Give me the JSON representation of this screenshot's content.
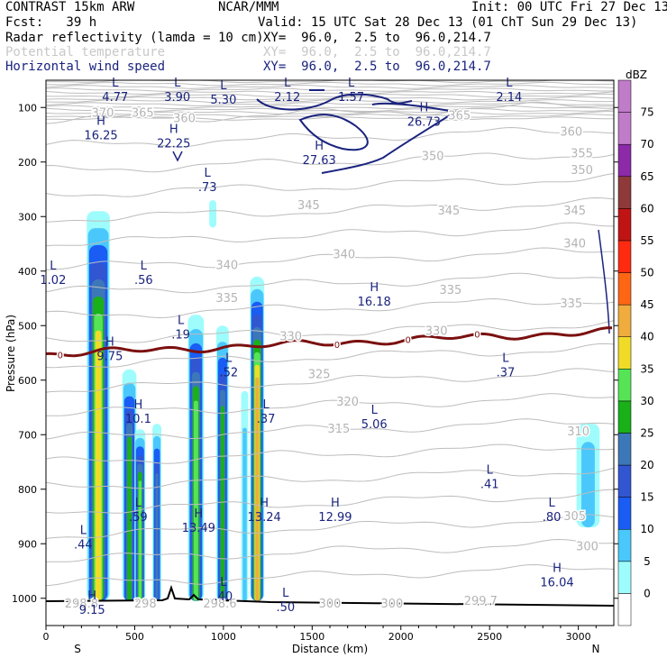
{
  "header": {
    "model": "CONTRAST 15km ARW",
    "center": "NCAR/MMM",
    "init": "Init: 00 UTC Fri 27 Dec 13",
    "fcst": "Fcst:   39 h",
    "valid": "Valid: 15 UTC Sat 28 Dec 13 (01 ChT Sun 29 Dec 13)",
    "field1_name": "Radar reflectivity (lamda = 10 cm)",
    "field1_xy": "XY=  96.0,  2.5 to  96.0,214.7",
    "field2_name": "Potential temperature",
    "field2_xy": "XY=  96.0,  2.5 to  96.0,214.7",
    "field3_name": "Horizontal wind speed",
    "field3_xy": "XY=  96.0,  2.5 to  96.0,214.7"
  },
  "colors": {
    "axis": "#000000",
    "theta": "#b4b4b4",
    "wind": "#1a237e",
    "freezing": "#7b1010",
    "terrain": "#000000"
  },
  "chart_data": {
    "type": "cross-section",
    "title": "Radar reflectivity / Potential temperature / Horizontal wind speed",
    "xlabel": "Distance (km)",
    "ylabel": "Pressure (hPa)",
    "xlim": [
      0,
      3200
    ],
    "ylim": [
      1050,
      50
    ],
    "x_ticks": [
      0,
      500,
      1000,
      1500,
      2000,
      2500,
      3000
    ],
    "y_ticks": [
      100,
      200,
      300,
      400,
      500,
      600,
      700,
      800,
      900,
      1000
    ],
    "x_end_labels": {
      "left": "S",
      "right": "N"
    },
    "colorbar": {
      "unit": "dBZ",
      "levels": [
        0,
        5,
        10,
        15,
        20,
        25,
        30,
        35,
        40,
        45,
        50,
        55,
        60,
        65,
        70,
        75
      ],
      "colors": [
        "#ffffff",
        "#9ffcfc",
        "#4ac8fc",
        "#1a5cf4",
        "#3256d2",
        "#3c78b8",
        "#19b019",
        "#56e456",
        "#f0dc28",
        "#f0ac3c",
        "#ff6614",
        "#ff2a10",
        "#c01414",
        "#8e3a3a",
        "#8c2aa8",
        "#c07cc8"
      ]
    },
    "theta_contours": [
      {
        "value": "370",
        "x": 320,
        "p": 110
      },
      {
        "value": "365",
        "x": 545,
        "p": 110
      },
      {
        "value": "360",
        "x": 780,
        "p": 120
      },
      {
        "value": "365",
        "x": 2330,
        "p": 115
      },
      {
        "value": "360",
        "x": 2960,
        "p": 145
      },
      {
        "value": "355",
        "x": 3020,
        "p": 185
      },
      {
        "value": "350",
        "x": 2180,
        "p": 190
      },
      {
        "value": "350",
        "x": 3020,
        "p": 215
      },
      {
        "value": "345",
        "x": 1480,
        "p": 280
      },
      {
        "value": "345",
        "x": 2270,
        "p": 290
      },
      {
        "value": "345",
        "x": 2980,
        "p": 290
      },
      {
        "value": "340",
        "x": 1680,
        "p": 370
      },
      {
        "value": "340",
        "x": 2980,
        "p": 350
      },
      {
        "value": "340",
        "x": 1020,
        "p": 390
      },
      {
        "value": "335",
        "x": 1020,
        "p": 450
      },
      {
        "value": "335",
        "x": 2280,
        "p": 435
      },
      {
        "value": "335",
        "x": 2960,
        "p": 460
      },
      {
        "value": "330",
        "x": 1380,
        "p": 520
      },
      {
        "value": "330",
        "x": 2200,
        "p": 510
      },
      {
        "value": "325",
        "x": 1540,
        "p": 590
      },
      {
        "value": "320",
        "x": 1700,
        "p": 640
      },
      {
        "value": "315",
        "x": 1650,
        "p": 690
      },
      {
        "value": "310",
        "x": 3000,
        "p": 695
      },
      {
        "value": "305",
        "x": 2980,
        "p": 850
      },
      {
        "value": "300",
        "x": 3050,
        "p": 905
      },
      {
        "value": "300",
        "x": 1600,
        "p": 1010
      },
      {
        "value": "300",
        "x": 1950,
        "p": 1010
      },
      {
        "value": "299.7",
        "x": 2450,
        "p": 1005
      },
      {
        "value": "298.8",
        "x": 200,
        "p": 1010
      },
      {
        "value": "298",
        "x": 560,
        "p": 1010
      },
      {
        "value": "298.6",
        "x": 980,
        "p": 1010
      }
    ],
    "freezing_level": {
      "value": "0",
      "label_x": [
        80,
        1640,
        2040,
        2430
      ],
      "pressure_hPa": 550
    },
    "wind_extrema": [
      {
        "type": "L",
        "value": "4.77",
        "x": 390,
        "p": 85
      },
      {
        "type": "L",
        "value": "3.90",
        "x": 740,
        "p": 85
      },
      {
        "type": "L",
        "value": "5.30",
        "x": 1000,
        "p": 90
      },
      {
        "type": "L",
        "value": "2.12",
        "x": 1360,
        "p": 85
      },
      {
        "type": "L",
        "value": "1.57",
        "x": 1720,
        "p": 85
      },
      {
        "type": "L",
        "value": "2.14",
        "x": 2610,
        "p": 85
      },
      {
        "type": "H",
        "value": "16.25",
        "x": 310,
        "p": 155
      },
      {
        "type": "H",
        "value": "22.25",
        "x": 720,
        "p": 170
      },
      {
        "type": "H",
        "value": "26.73",
        "x": 2130,
        "p": 130
      },
      {
        "type": "H",
        "value": "27.63",
        "x": 1540,
        "p": 200
      },
      {
        "type": "L",
        "value": ".73",
        "x": 910,
        "p": 250
      },
      {
        "type": "L",
        "value": "1.02",
        "x": 40,
        "p": 420
      },
      {
        "type": "L",
        "value": ".56",
        "x": 550,
        "p": 420
      },
      {
        "type": "H",
        "value": "16.18",
        "x": 1850,
        "p": 460
      },
      {
        "type": "L",
        "value": ".19",
        "x": 760,
        "p": 520
      },
      {
        "type": "H",
        "value": "9.75",
        "x": 360,
        "p": 560
      },
      {
        "type": "L",
        "value": ".52",
        "x": 1030,
        "p": 590
      },
      {
        "type": "L",
        "value": ".37",
        "x": 2590,
        "p": 590
      },
      {
        "type": "H",
        "value": "10.1",
        "x": 520,
        "p": 675
      },
      {
        "type": "L",
        "value": ".37",
        "x": 1240,
        "p": 675
      },
      {
        "type": "L",
        "value": "5.06",
        "x": 1850,
        "p": 685
      },
      {
        "type": "L",
        "value": ".41",
        "x": 2500,
        "p": 795
      },
      {
        "type": "L",
        "value": ".59",
        "x": 520,
        "p": 855
      },
      {
        "type": "H",
        "value": "13.49",
        "x": 860,
        "p": 875
      },
      {
        "type": "H",
        "value": "13.24",
        "x": 1230,
        "p": 855
      },
      {
        "type": "H",
        "value": "12.99",
        "x": 1630,
        "p": 855
      },
      {
        "type": "L",
        "value": ".80",
        "x": 2850,
        "p": 855
      },
      {
        "type": "L",
        "value": ".44",
        "x": 210,
        "p": 905
      },
      {
        "type": "H",
        "value": "16.04",
        "x": 2880,
        "p": 975
      },
      {
        "type": "L",
        "value": ".40",
        "x": 1000,
        "p": 1000
      },
      {
        "type": "L",
        "value": ".50",
        "x": 1350,
        "p": 1020
      },
      {
        "type": "H",
        "value": "9.15",
        "x": 260,
        "p": 1025
      }
    ],
    "reflectivity_cells": [
      {
        "x": [
          230,
          360
        ],
        "p_top": 290,
        "p_bot": 1005,
        "max_dbz": 40
      },
      {
        "x": [
          430,
          510
        ],
        "p_top": 580,
        "p_bot": 1005,
        "max_dbz": 30
      },
      {
        "x": [
          500,
          560
        ],
        "p_top": 690,
        "p_bot": 1005,
        "max_dbz": 35
      },
      {
        "x": [
          600,
          650
        ],
        "p_top": 680,
        "p_bot": 1005,
        "max_dbz": 25
      },
      {
        "x": [
          920,
          960
        ],
        "p_top": 270,
        "p_bot": 320,
        "max_dbz": 5
      },
      {
        "x": [
          800,
          890
        ],
        "p_top": 480,
        "p_bot": 1005,
        "max_dbz": 35
      },
      {
        "x": [
          960,
          1030
        ],
        "p_top": 500,
        "p_bot": 1005,
        "max_dbz": 30
      },
      {
        "x": [
          1100,
          1140
        ],
        "p_top": 620,
        "p_bot": 1005,
        "max_dbz": 10
      },
      {
        "x": [
          1150,
          1230
        ],
        "p_top": 410,
        "p_bot": 1005,
        "max_dbz": 45
      },
      {
        "x": [
          2990,
          3120
        ],
        "p_top": 680,
        "p_bot": 870,
        "max_dbz": 10
      }
    ]
  }
}
